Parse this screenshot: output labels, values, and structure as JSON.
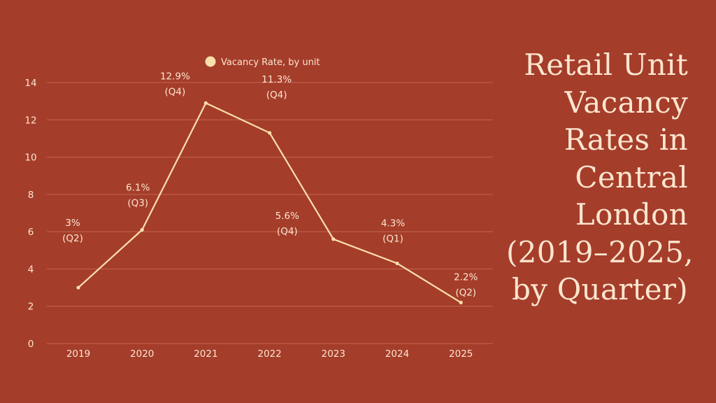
{
  "chart_data": {
    "type": "line",
    "title_lines": [
      "Retail Unit",
      "Vacancy",
      "Rates in",
      "Central",
      "London",
      "(2019–2025,",
      "by Quarter)"
    ],
    "legend": "Vacancy Rate, by unit",
    "categories": [
      "2019",
      "2020",
      "2021",
      "2022",
      "2023",
      "2024",
      "2025"
    ],
    "series": [
      {
        "name": "Vacancy Rate, by unit",
        "values": [
          3,
          6.1,
          12.9,
          11.3,
          5.6,
          4.3,
          2.2
        ]
      }
    ],
    "point_labels": [
      [
        "3%",
        "(Q2)"
      ],
      [
        "6.1%",
        "(Q3)"
      ],
      [
        "12.9%",
        "(Q4)"
      ],
      [
        "11.3%",
        "(Q4)"
      ],
      [
        "5.6%",
        "(Q4)"
      ],
      [
        "4.3%",
        "(Q1)"
      ],
      [
        "2.2%",
        "(Q2)"
      ]
    ],
    "ylim": [
      0,
      14
    ],
    "yticks": [
      0,
      2,
      4,
      6,
      8,
      10,
      12,
      14
    ],
    "grid": true,
    "legend_position": "top-center"
  },
  "colors": {
    "background": "#a53d2b",
    "line": "#fbe0aa",
    "text": "#fbe6cf",
    "grid": "#c06752"
  }
}
